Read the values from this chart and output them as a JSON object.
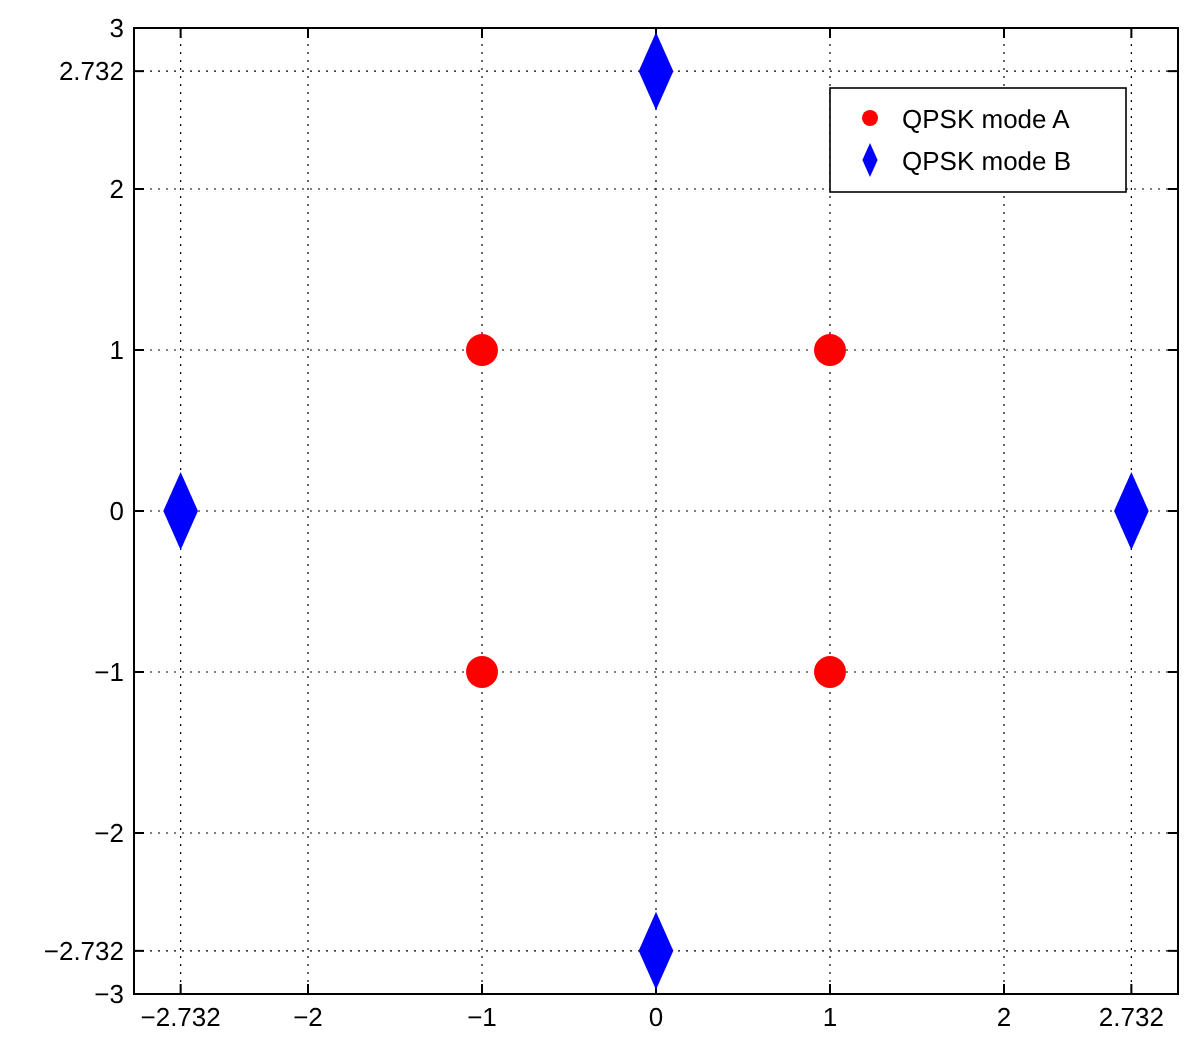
{
  "chart_data": {
    "type": "scatter",
    "xlim": [
      -3,
      3
    ],
    "ylim": [
      -3,
      3
    ],
    "xticks": [
      -2.732,
      -2,
      -1,
      0,
      1,
      2,
      2.732
    ],
    "yticks": [
      -3,
      -2.732,
      -2,
      -1,
      0,
      1,
      2,
      2.732,
      3
    ],
    "grid": true,
    "legend": "top right",
    "series": [
      {
        "name": "QPSK mode A",
        "color": "#ff0000",
        "marker": "circle",
        "x": [
          -1,
          1,
          -1,
          1
        ],
        "values": [
          1,
          1,
          -1,
          -1
        ]
      },
      {
        "name": "QPSK mode B",
        "color": "#0000ff",
        "marker": "diamond",
        "x": [
          0,
          2.732,
          0,
          -2.732
        ],
        "values": [
          2.732,
          0,
          -2.732,
          0
        ]
      }
    ]
  }
}
